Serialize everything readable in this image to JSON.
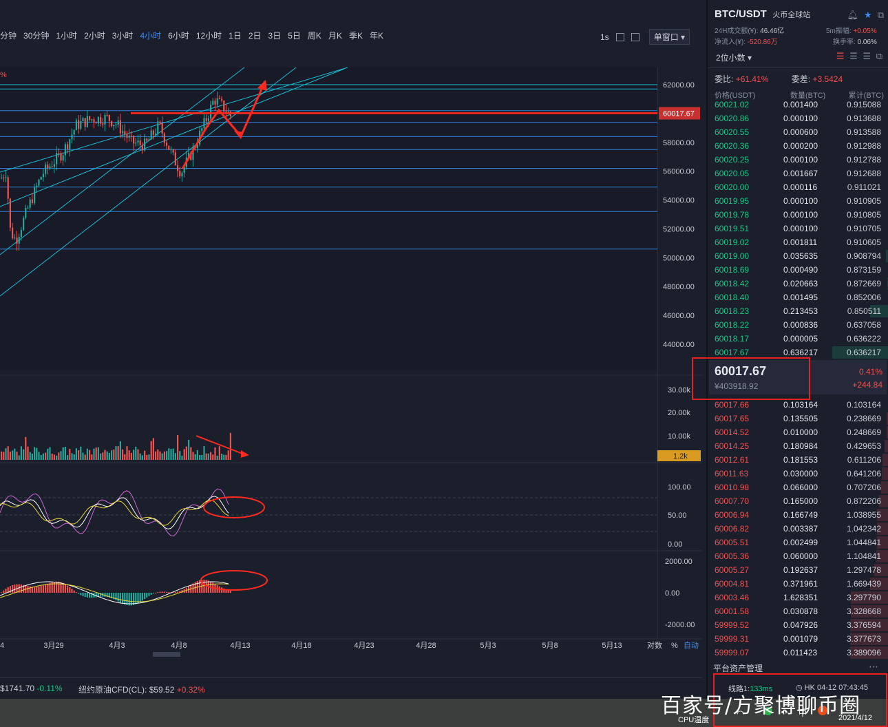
{
  "timeframes": [
    "分钟",
    "30分钟",
    "1小时",
    "2小时",
    "3小时",
    "4小时",
    "6小时",
    "12小时",
    "1日",
    "2日",
    "3日",
    "5日",
    "周K",
    "月K",
    "季K",
    "年K"
  ],
  "active_timeframe": "4小时",
  "toolbar": {
    "interval": "1s",
    "window_mode": "单窗口"
  },
  "chart": {
    "y_ticks": [
      "62000.00",
      "58000.00",
      "56000.00",
      "54000.00",
      "52000.00",
      "50000.00",
      "48000.00",
      "46000.00",
      "44000.00"
    ],
    "last_price_tag": "60017.67",
    "pct_marker": "%",
    "volume_ticks": [
      "30.00k",
      "20.00k",
      "10.00k"
    ],
    "volume_tag": "1.2k",
    "kdj_ticks": [
      "100.00",
      "50.00",
      "0.00"
    ],
    "macd_ticks": [
      "2000.00",
      "0.00",
      "-2000.00"
    ],
    "x_labels": [
      "4",
      "3月29",
      "4月3",
      "4月8",
      "4月13",
      "4月18",
      "4月23",
      "4月28",
      "5月3",
      "5月8",
      "5月13"
    ],
    "axis_controls": [
      "对数",
      "%",
      "自动"
    ],
    "colors": {
      "up": "#ef5350",
      "down": "#26a69a",
      "arrow": "#ff2a1f",
      "channel": "#19bcd4",
      "hline": "#2f7fd8"
    }
  },
  "bottom_bar": {
    "item1_price": "$1741.70",
    "item1_chg": "-0.11%",
    "item2_label": "纽约原油CFD(CL):",
    "item2_price": "$59.52",
    "item2_chg": "+0.32%"
  },
  "orderbook": {
    "pair": "BTC/USDT",
    "exchange": "火币全球站",
    "vol24_label": "24H成交额(¥):",
    "vol24_value": "46.46亿",
    "amp_label": "5m振幅:",
    "amp_value": "+0.05%",
    "inflow_label": "净流入(¥):",
    "inflow_value": "-520.86万",
    "turnover_label": "换手率:",
    "turnover_value": "0.06%",
    "decimals": "2位小数",
    "ratio_label": "委比:",
    "ratio_value": "+61.41%",
    "diff_label": "委差:",
    "diff_value": "+3.5424",
    "columns": [
      "价格(USDT)",
      "数量(BTC)",
      "累计(BTC)"
    ],
    "top_rows": [
      {
        "p": "60021.02",
        "q": "0.001400",
        "c": "0.915088"
      },
      {
        "p": "60020.86",
        "q": "0.000100",
        "c": "0.913688"
      },
      {
        "p": "60020.55",
        "q": "0.000600",
        "c": "0.913588"
      },
      {
        "p": "60020.36",
        "q": "0.000200",
        "c": "0.912988"
      },
      {
        "p": "60020.25",
        "q": "0.000100",
        "c": "0.912788"
      },
      {
        "p": "60020.05",
        "q": "0.001667",
        "c": "0.912688"
      },
      {
        "p": "60020.00",
        "q": "0.000116",
        "c": "0.911021"
      },
      {
        "p": "60019.95",
        "q": "0.000100",
        "c": "0.910905"
      },
      {
        "p": "60019.78",
        "q": "0.000100",
        "c": "0.910805"
      },
      {
        "p": "60019.51",
        "q": "0.000100",
        "c": "0.910705"
      },
      {
        "p": "60019.02",
        "q": "0.001811",
        "c": "0.910605"
      },
      {
        "p": "60019.00",
        "q": "0.035635",
        "c": "0.908794"
      },
      {
        "p": "60018.69",
        "q": "0.000490",
        "c": "0.873159"
      },
      {
        "p": "60018.42",
        "q": "0.020663",
        "c": "0.872669"
      },
      {
        "p": "60018.40",
        "q": "0.001495",
        "c": "0.852006"
      },
      {
        "p": "60018.23",
        "q": "0.213453",
        "c": "0.850511"
      },
      {
        "p": "60018.22",
        "q": "0.000836",
        "c": "0.637058"
      },
      {
        "p": "60018.17",
        "q": "0.000005",
        "c": "0.636222"
      },
      {
        "p": "60017.67",
        "q": "0.636217",
        "c": "0.636217"
      }
    ],
    "mid_price": "60017.67",
    "mid_cny": "¥403918.92",
    "mid_pct": "0.41%",
    "mid_change": "+244.84",
    "bottom_rows": [
      {
        "p": "60017.66",
        "q": "0.103164",
        "c": "0.103164"
      },
      {
        "p": "60017.65",
        "q": "0.135505",
        "c": "0.238669"
      },
      {
        "p": "60014.52",
        "q": "0.010000",
        "c": "0.248669"
      },
      {
        "p": "60014.25",
        "q": "0.180984",
        "c": "0.429653"
      },
      {
        "p": "60012.61",
        "q": "0.181553",
        "c": "0.611206"
      },
      {
        "p": "60011.63",
        "q": "0.030000",
        "c": "0.641206"
      },
      {
        "p": "60010.98",
        "q": "0.066000",
        "c": "0.707206"
      },
      {
        "p": "60007.70",
        "q": "0.165000",
        "c": "0.872206"
      },
      {
        "p": "60006.94",
        "q": "0.166749",
        "c": "1.038955"
      },
      {
        "p": "60006.82",
        "q": "0.003387",
        "c": "1.042342"
      },
      {
        "p": "60005.51",
        "q": "0.002499",
        "c": "1.044841"
      },
      {
        "p": "60005.36",
        "q": "0.060000",
        "c": "1.104841"
      },
      {
        "p": "60005.27",
        "q": "0.192637",
        "c": "1.297478"
      },
      {
        "p": "60004.81",
        "q": "0.371961",
        "c": "1.669439"
      },
      {
        "p": "60003.46",
        "q": "1.628351",
        "c": "3.297790"
      },
      {
        "p": "60001.58",
        "q": "0.030878",
        "c": "3.328668"
      },
      {
        "p": "59999.52",
        "q": "0.047926",
        "c": "3.376594"
      },
      {
        "p": "59999.31",
        "q": "0.001079",
        "c": "3.377673"
      },
      {
        "p": "59999.07",
        "q": "0.011423",
        "c": "3.389096"
      }
    ],
    "asset_mgmt": "平台资产管理",
    "line_label": "线路1:",
    "line_latency": "133ms",
    "server_time": "HK 04-12 07:43:45"
  },
  "taskbar": {
    "cpu_temp": "CPU温度",
    "date": "2021/4/12"
  },
  "watermark": "百家号/方聚博聊币圈"
}
